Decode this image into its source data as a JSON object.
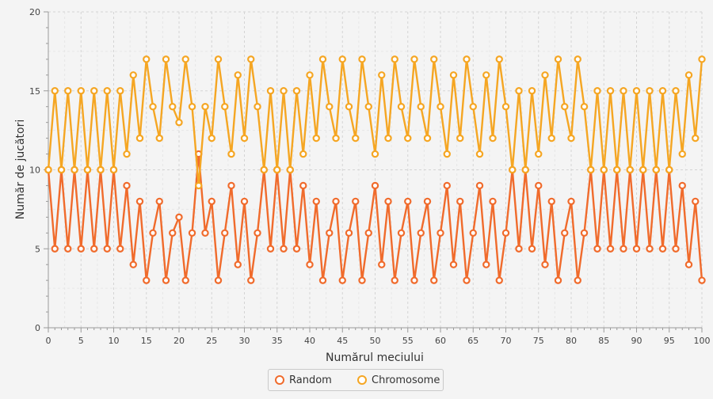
{
  "chart_data": {
    "type": "line",
    "xlabel": "Numărul meciului",
    "ylabel": "Număr de jucători",
    "xlim": [
      0,
      100
    ],
    "ylim": [
      0,
      20
    ],
    "xticks": [
      0,
      5,
      10,
      15,
      20,
      25,
      30,
      35,
      40,
      45,
      50,
      55,
      60,
      65,
      70,
      75,
      80,
      85,
      90,
      95,
      100
    ],
    "yticks": [
      0,
      5,
      10,
      15,
      20
    ],
    "grid": true,
    "legend_position": "bottom",
    "x": [
      0,
      1,
      2,
      3,
      4,
      5,
      6,
      7,
      8,
      9,
      10,
      11,
      12,
      13,
      14,
      15,
      16,
      17,
      18,
      19,
      20,
      21,
      22,
      23,
      24,
      25,
      26,
      27,
      28,
      29,
      30,
      31,
      32,
      33,
      34,
      35,
      36,
      37,
      38,
      39,
      40,
      41,
      42,
      43,
      44,
      45,
      46,
      47,
      48,
      49,
      50,
      51,
      52,
      53,
      54,
      55,
      56,
      57,
      58,
      59,
      60,
      61,
      62,
      63,
      64,
      65,
      66,
      67,
      68,
      69,
      70,
      71,
      72,
      73,
      74,
      75,
      76,
      77,
      78,
      79,
      80,
      81,
      82,
      83,
      84,
      85,
      86,
      87,
      88,
      89,
      90,
      91,
      92,
      93,
      94,
      95,
      96,
      97,
      98,
      99,
      100
    ],
    "series": [
      {
        "name": "Random",
        "color": "#f06b2c",
        "values": [
          10,
          5,
          10,
          5,
          10,
          5,
          10,
          5,
          10,
          5,
          10,
          5,
          9,
          4,
          8,
          3,
          6,
          8,
          3,
          6,
          7,
          3,
          6,
          11,
          6,
          8,
          3,
          6,
          9,
          4,
          8,
          3,
          6,
          10,
          5,
          10,
          5,
          10,
          5,
          9,
          4,
          8,
          3,
          6,
          8,
          3,
          6,
          8,
          3,
          6,
          9,
          4,
          8,
          3,
          6,
          8,
          3,
          6,
          8,
          3,
          6,
          9,
          4,
          8,
          3,
          6,
          9,
          4,
          8,
          3,
          6,
          10,
          5,
          10,
          5,
          9,
          4,
          8,
          3,
          6,
          8,
          3,
          6,
          10,
          5,
          10,
          5,
          10,
          5,
          10,
          5,
          10,
          5,
          10,
          5,
          10,
          5,
          9,
          4,
          8,
          3
        ]
      },
      {
        "name": "Chromosome",
        "color": "#f5a623",
        "values": [
          10,
          15,
          10,
          15,
          10,
          15,
          10,
          15,
          10,
          15,
          10,
          15,
          11,
          16,
          12,
          17,
          14,
          12,
          17,
          14,
          13,
          17,
          14,
          9,
          14,
          12,
          17,
          14,
          11,
          16,
          12,
          17,
          14,
          10,
          15,
          10,
          15,
          10,
          15,
          11,
          16,
          12,
          17,
          14,
          12,
          17,
          14,
          12,
          17,
          14,
          11,
          16,
          12,
          17,
          14,
          12,
          17,
          14,
          12,
          17,
          14,
          11,
          16,
          12,
          17,
          14,
          11,
          16,
          12,
          17,
          14,
          10,
          15,
          10,
          15,
          11,
          16,
          12,
          17,
          14,
          12,
          17,
          14,
          10,
          15,
          10,
          15,
          10,
          15,
          10,
          15,
          10,
          15,
          10,
          15,
          10,
          15,
          11,
          16,
          12,
          17
        ]
      }
    ]
  }
}
